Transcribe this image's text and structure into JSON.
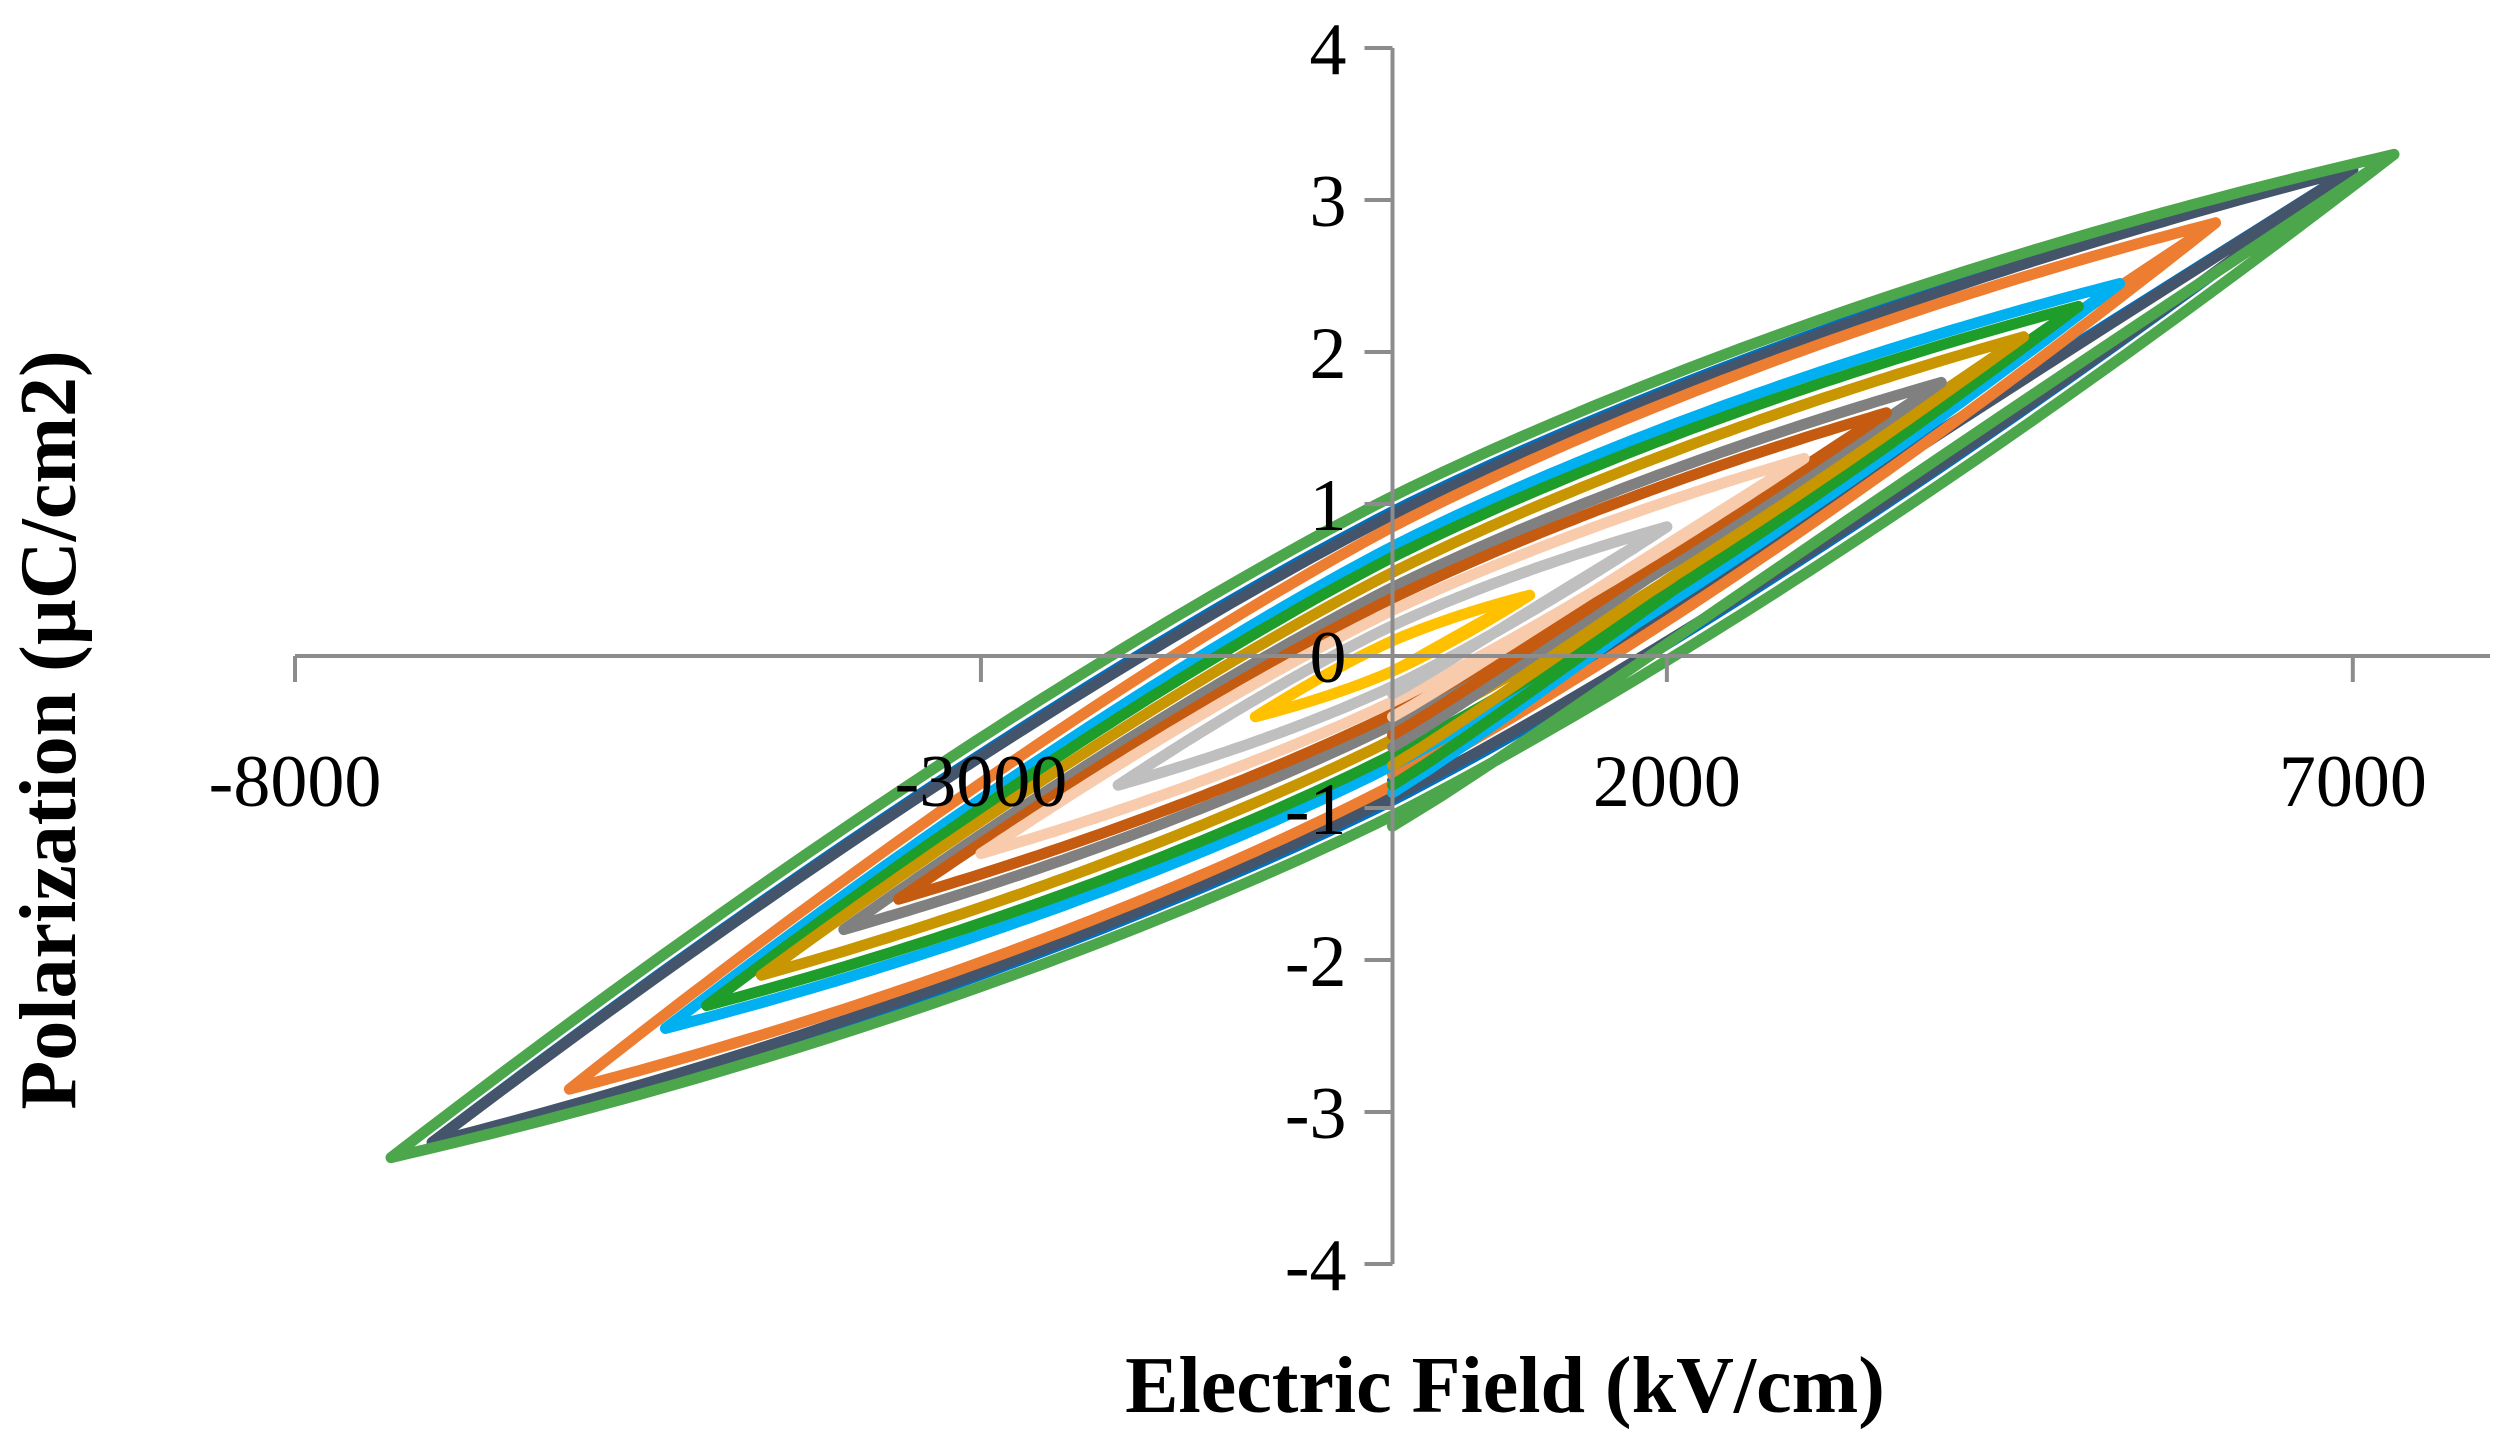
{
  "chart_data": {
    "type": "line",
    "title": "",
    "xlabel": "Electric Field (kV/cm)",
    "ylabel": "Polarization (µC/cm2)",
    "xlim": [
      -8000,
      8000
    ],
    "ylim": [
      -4,
      4
    ],
    "x_ticks": [
      -8000,
      -3000,
      2000,
      7000
    ],
    "x_tick_labels": [
      "-8000",
      "-3000",
      "2000",
      "7000"
    ],
    "y_ticks": [
      4,
      3,
      2,
      1,
      0,
      -1,
      -2,
      -3,
      -4
    ],
    "y_tick_labels": [
      "4",
      "3",
      "2",
      "1",
      "0",
      "-1",
      "-2",
      "-3",
      "-4"
    ],
    "grid": false,
    "legend": "none",
    "series": [
      {
        "color": "#0070C0",
        "emax": 7000,
        "pmax": 3.2,
        "pr": 0.95,
        "pstart": -0.82
      },
      {
        "color": "#44546A",
        "emax": 7000,
        "pmax": 3.2,
        "pr": 0.93,
        "pstart": -0.86
      },
      {
        "color": "#ED7D31",
        "emax": 6000,
        "pmax": 2.85,
        "pr": 0.85,
        "pstart": -0.78
      },
      {
        "color": "#00B0F0",
        "emax": 5300,
        "pmax": 2.45,
        "pr": 0.72,
        "pstart": -0.9
      },
      {
        "color": "#1F9D2A",
        "emax": 5000,
        "pmax": 2.3,
        "pr": 0.65,
        "pstart": -0.85
      },
      {
        "color": "#C89600",
        "emax": 4600,
        "pmax": 2.1,
        "pr": 0.55,
        "pstart": -0.72
      },
      {
        "color": "#808080",
        "emax": 4000,
        "pmax": 1.8,
        "pr": 0.45,
        "pstart": -0.6
      },
      {
        "color": "#C55A11",
        "emax": 3600,
        "pmax": 1.6,
        "pr": 0.38,
        "pstart": -0.52
      },
      {
        "color": "#F8CBAD",
        "emax": 3000,
        "pmax": 1.3,
        "pr": 0.3,
        "pstart": -0.4
      },
      {
        "color": "#BFBFBF",
        "emax": 2000,
        "pmax": 0.85,
        "pr": 0.2,
        "pstart": -0.25
      },
      {
        "color": "#FFC000",
        "emax": 1000,
        "pmax": 0.4,
        "pr": 0.1,
        "pstart": -0.1
      },
      {
        "color": "#4CA64C",
        "emax": 7300,
        "pmax": 3.3,
        "pr": 1.05,
        "pstart": -1.12
      }
    ]
  }
}
